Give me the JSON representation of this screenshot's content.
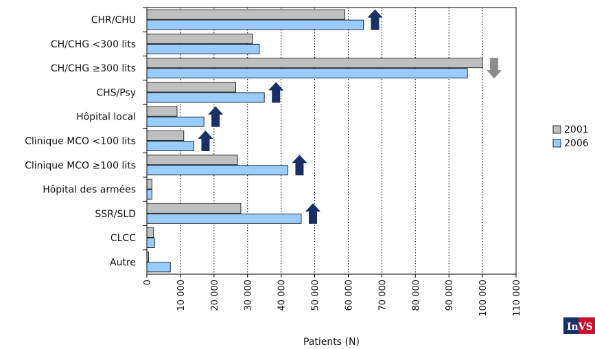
{
  "chart_data": {
    "type": "bar",
    "orientation": "horizontal",
    "categories": [
      "CHR/CHU",
      "CH/CHG <300 lits",
      "CH/CHG ≥300 lits",
      "CHS/Psy",
      "Hôpital local",
      "Clinique MCO <100 lits",
      "Clinique MCO ≥100 lits",
      "Hôpital des armées",
      "SSR/SLD",
      "CLCC",
      "Autre"
    ],
    "series": [
      {
        "name": "2001",
        "color": "#c0c0c0",
        "values": [
          59000,
          31500,
          100000,
          26500,
          9000,
          11000,
          27000,
          1500,
          28000,
          2000,
          500
        ]
      },
      {
        "name": "2006",
        "color": "#99ccff",
        "values": [
          64500,
          33500,
          95500,
          35000,
          17000,
          14000,
          42000,
          1500,
          46000,
          2300,
          7000
        ]
      }
    ],
    "trend_arrows": [
      "up",
      "none",
      "down",
      "up",
      "up",
      "up",
      "up",
      "none",
      "up",
      "none",
      "none"
    ],
    "arrow_colors": {
      "up": "#1a2f66",
      "down": "#8c8c8c"
    },
    "xlabel": "Patients (N)",
    "xlim": [
      0,
      110000
    ],
    "xticks": [
      0,
      10000,
      20000,
      30000,
      40000,
      50000,
      60000,
      70000,
      80000,
      90000,
      100000,
      110000
    ],
    "xtick_labels": [
      "0",
      "10 000",
      "20 000",
      "30 000",
      "40 000",
      "50 000",
      "60 000",
      "70 000",
      "80 000",
      "90 000",
      "100 000",
      "110 000"
    ],
    "grid": "vertical dotted",
    "legend_position": "right"
  },
  "logo": {
    "text": "InVS"
  }
}
